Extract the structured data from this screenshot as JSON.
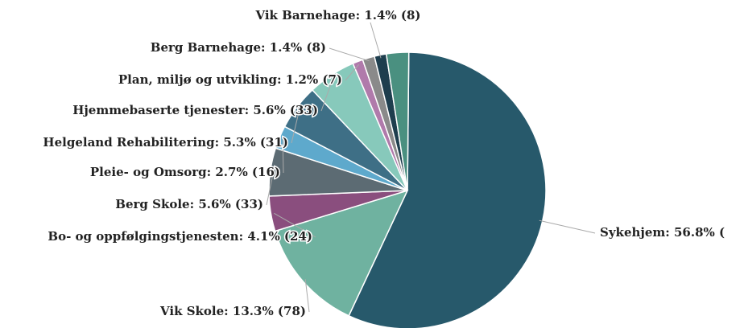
{
  "chart_data": {
    "type": "pie",
    "values": [
      56.8,
      13.3,
      4.1,
      5.6,
      2.7,
      5.3,
      5.6,
      1.2,
      1.4,
      1.4,
      2.6
    ],
    "value_labels": [
      "Sykehjem: 56.8% (",
      "Vik Skole: 13.3% (78)",
      "Bo- og oppfølgingstjenesten: 4.1% (24)",
      "Berg Skole: 5.6% (33)",
      "Pleie- og Omsorg: 2.7% (16)",
      "Helgeland Rehabilitering: 5.3% (31)",
      "Hjemmebaserte tjenester: 5.6% (33)",
      "Plan, miljø og utvikling: 1.2% (7)",
      "Berg Barnehage: 1.4% (8)",
      "Vik Barnehage: 1.4% (8)",
      null
    ],
    "colors": [
      "#27596b",
      "#6fb2a0",
      "#8a4e7e",
      "#5c6b73",
      "#5ea9cc",
      "#3e6f86",
      "#87c9bb",
      "#b07aab",
      "#8a8a8a",
      "#1e3e4e",
      "#4a9080"
    ]
  }
}
